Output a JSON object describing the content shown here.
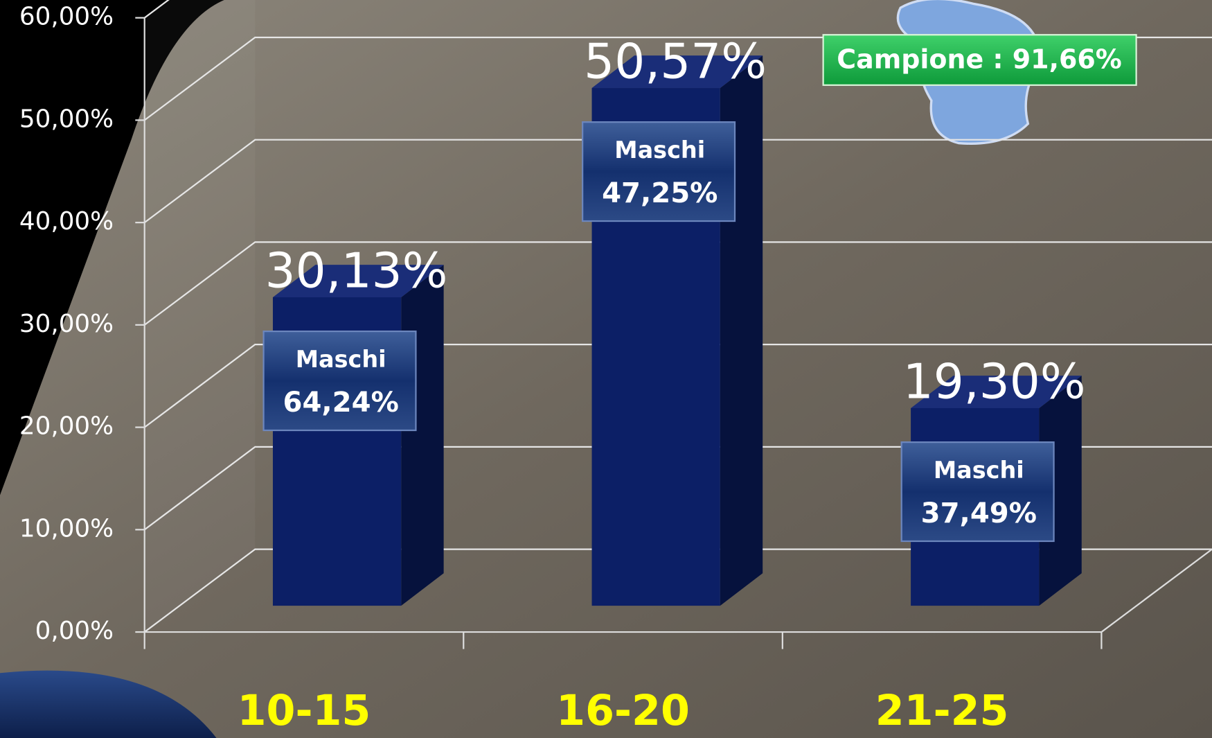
{
  "chart_data": {
    "type": "bar",
    "categories": [
      "10-15",
      "16-20",
      "21-25"
    ],
    "values": [
      30.13,
      50.57,
      19.3
    ],
    "value_labels": [
      "30,13%",
      "50,57%",
      "19,30%"
    ],
    "color": "#0c1f66",
    "ylim": [
      0,
      60
    ],
    "yticks": [
      {
        "value": 0,
        "label": "0,00%"
      },
      {
        "value": 10,
        "label": "10,00%"
      },
      {
        "value": 20,
        "label": "20,00%"
      },
      {
        "value": 30,
        "label": "30,00%"
      },
      {
        "value": 40,
        "label": "40,00%"
      },
      {
        "value": 50,
        "label": "50,00%"
      },
      {
        "value": 60,
        "label": "60,00%"
      }
    ],
    "grid": true,
    "maschi": {
      "label": "Maschi",
      "values": [
        64.24,
        47.25,
        37.49
      ],
      "value_labels": [
        "64,24%",
        "47,25%",
        "37,49%"
      ]
    },
    "note": "Campione : 91,66%"
  }
}
